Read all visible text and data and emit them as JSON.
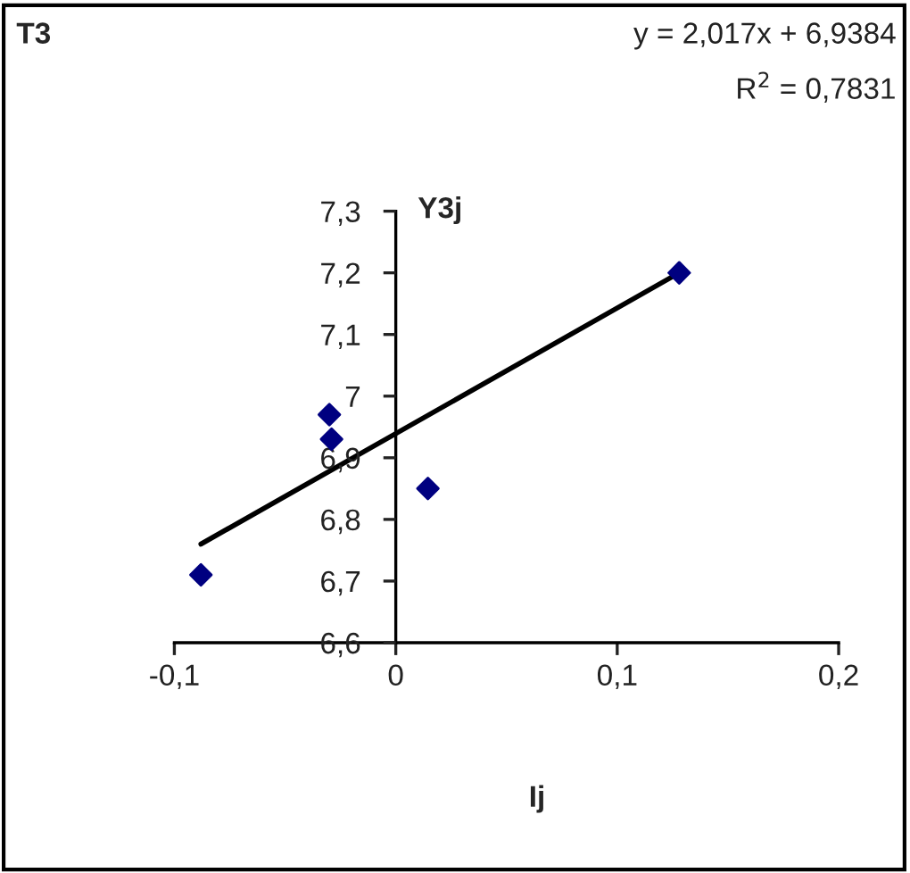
{
  "chart_data": {
    "type": "scatter",
    "title": "T3",
    "xlabel": "Ij",
    "ylabel": "Y3j",
    "annotations": [
      "y = 2,017x + 6,9384",
      "R$^{2}$ = 0,7831"
    ],
    "series": [
      {
        "type": "scatter",
        "color": "#000080",
        "marker": "diamond",
        "x": [
          -0.088,
          -0.03,
          -0.029,
          0.0145,
          0.128
        ],
        "values": [
          6.71,
          6.97,
          6.93,
          6.85,
          7.2
        ]
      },
      {
        "type": "line",
        "color": "#000000",
        "marker": "none",
        "x": [
          -0.088,
          0.128
        ],
        "values": [
          6.76,
          7.2
        ]
      }
    ],
    "xlim": [
      -0.1,
      0.2
    ],
    "ylim": [
      6.6,
      7.3
    ],
    "xticks": [
      {
        "value": -0.1,
        "label": "-0,1"
      },
      {
        "value": 0,
        "label": "0"
      },
      {
        "value": 0.1,
        "label": "0,1"
      },
      {
        "value": 0.2,
        "label": "0,2"
      }
    ],
    "yticks": [
      {
        "value": 6.6,
        "label": "6,6"
      },
      {
        "value": 6.7,
        "label": "6,7"
      },
      {
        "value": 6.8,
        "label": "6,8"
      },
      {
        "value": 6.9,
        "label": "6,9"
      },
      {
        "value": 7.0,
        "label": "7"
      },
      {
        "value": 7.1,
        "label": "7,1"
      },
      {
        "value": 7.2,
        "label": "7,2"
      },
      {
        "value": 7.3,
        "label": "7,3"
      }
    ],
    "grid": false,
    "legend": false
  }
}
